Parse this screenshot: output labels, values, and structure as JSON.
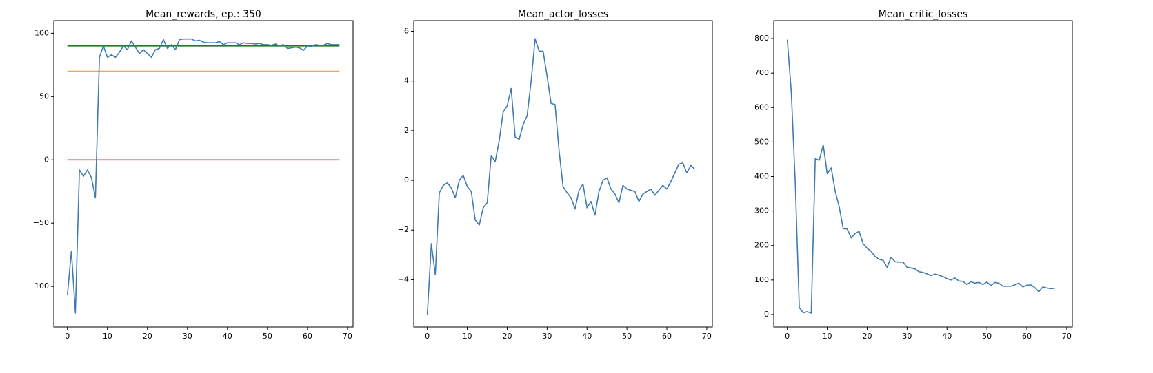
{
  "chart_data": [
    {
      "type": "line",
      "title": "Mean_rewards, ep.: 350",
      "color": "#3f7ab0",
      "x": [
        0,
        1,
        2,
        3,
        4,
        5,
        6,
        7,
        8,
        9,
        10,
        11,
        12,
        13,
        14,
        15,
        16,
        17,
        18,
        19,
        20,
        21,
        22,
        23,
        24,
        25,
        26,
        27,
        28,
        29,
        30,
        31,
        32,
        33,
        34,
        35,
        36,
        37,
        38,
        39,
        40,
        41,
        42,
        43,
        44,
        45,
        46,
        47,
        48,
        49,
        50,
        51,
        52,
        53,
        54,
        55,
        56,
        57,
        58,
        59,
        60,
        61,
        62,
        63,
        64,
        65,
        66,
        67,
        68
      ],
      "values": [
        -107,
        -72,
        -121,
        -8,
        -13,
        -8,
        -14,
        -30,
        81,
        90,
        81,
        83,
        81,
        85,
        90,
        87,
        94,
        89,
        84,
        87,
        84,
        81,
        87,
        88,
        95,
        88,
        91,
        87,
        95,
        95.5,
        95.5,
        95.5,
        94,
        94.5,
        93,
        92.5,
        92.5,
        92.5,
        93.5,
        91,
        92.5,
        92.5,
        92.5,
        91,
        92.5,
        92,
        92,
        91.5,
        92,
        91,
        91,
        90.5,
        91.5,
        90,
        91,
        88,
        88.5,
        89,
        88.5,
        86.5,
        90,
        89.5,
        91,
        90.5,
        90.5,
        92,
        91,
        91,
        91
      ],
      "hlines": [
        {
          "value": 90,
          "color": "#1e7b1e"
        },
        {
          "value": 70,
          "color": "#ffa726"
        },
        {
          "value": 0,
          "color": "#e53935"
        }
      ],
      "xlim": [
        -3.4,
        71.4
      ],
      "ylim": [
        -132,
        110
      ],
      "xticks": [
        0,
        10,
        20,
        30,
        40,
        50,
        60,
        70
      ],
      "yticks": [
        {
          "value": -100,
          "label": "−100"
        },
        {
          "value": -50,
          "label": "−50"
        },
        0,
        50,
        100
      ]
    },
    {
      "type": "line",
      "title": "Mean_actor_losses",
      "color": "#3f7ab0",
      "x": [
        0,
        1,
        2,
        3,
        4,
        5,
        6,
        7,
        8,
        9,
        10,
        11,
        12,
        13,
        14,
        15,
        16,
        17,
        18,
        19,
        20,
        21,
        22,
        23,
        24,
        25,
        26,
        27,
        28,
        29,
        30,
        31,
        32,
        33,
        34,
        35,
        36,
        37,
        38,
        39,
        40,
        41,
        42,
        43,
        44,
        45,
        46,
        47,
        48,
        49,
        50,
        51,
        52,
        53,
        54,
        55,
        56,
        57,
        58,
        59,
        60,
        61,
        62,
        63,
        64,
        65,
        66,
        67
      ],
      "values": [
        -5.4,
        -2.55,
        -3.8,
        -0.5,
        -0.2,
        -0.1,
        -0.3,
        -0.7,
        0,
        0.2,
        -0.25,
        -0.45,
        -1.6,
        -1.8,
        -1.1,
        -0.9,
        1.0,
        0.75,
        1.6,
        2.75,
        3.0,
        3.7,
        1.75,
        1.65,
        2.25,
        2.6,
        4.0,
        5.7,
        5.2,
        5.2,
        4.2,
        3.1,
        3.05,
        1.2,
        -0.25,
        -0.5,
        -0.7,
        -1.15,
        -0.4,
        -0.15,
        -1.1,
        -0.85,
        -1.4,
        -0.45,
        0,
        0.1,
        -0.35,
        -0.55,
        -0.9,
        -0.2,
        -0.35,
        -0.4,
        -0.45,
        -0.85,
        -0.55,
        -0.45,
        -0.35,
        -0.6,
        -0.4,
        -0.2,
        -0.35,
        -0.05,
        0.3,
        0.65,
        0.7,
        0.3,
        0.6,
        0.45
      ],
      "xlim": [
        -3.4,
        71.4
      ],
      "ylim": [
        -5.9,
        6.43
      ],
      "xticks": [
        0,
        10,
        20,
        30,
        40,
        50,
        60,
        70
      ],
      "yticks": [
        {
          "value": -4,
          "label": "−4"
        },
        {
          "value": -2,
          "label": "−2"
        },
        0,
        2,
        4,
        6
      ]
    },
    {
      "type": "line",
      "title": "Mean_critic_losses",
      "color": "#3f7ab0",
      "x": [
        0,
        1,
        2,
        3,
        4,
        5,
        6,
        7,
        8,
        9,
        10,
        11,
        12,
        13,
        14,
        15,
        16,
        17,
        18,
        19,
        20,
        21,
        22,
        23,
        24,
        25,
        26,
        27,
        28,
        29,
        30,
        31,
        32,
        33,
        34,
        35,
        36,
        37,
        38,
        39,
        40,
        41,
        42,
        43,
        44,
        45,
        46,
        47,
        48,
        49,
        50,
        51,
        52,
        53,
        54,
        55,
        56,
        57,
        58,
        59,
        60,
        61,
        62,
        63,
        64,
        65,
        66,
        67
      ],
      "values": [
        797,
        645,
        380,
        20,
        5,
        8,
        4,
        452,
        447,
        492,
        408,
        425,
        357,
        312,
        249,
        248,
        222,
        235,
        241,
        205,
        192,
        183,
        168,
        160,
        157,
        137,
        166,
        153,
        152,
        152,
        137,
        135,
        132,
        124,
        122,
        118,
        113,
        117,
        114,
        110,
        104,
        100,
        106,
        97,
        96,
        87,
        95,
        91,
        93,
        87,
        94,
        84,
        93,
        91,
        82,
        82,
        82,
        86,
        91,
        80,
        85,
        86,
        78,
        66,
        80,
        77,
        75,
        76
      ],
      "xlim": [
        -3.4,
        71.4
      ],
      "ylim": [
        -36,
        852
      ],
      "xticks": [
        0,
        10,
        20,
        30,
        40,
        50,
        60,
        70
      ],
      "yticks": [
        0,
        100,
        200,
        300,
        400,
        500,
        600,
        700,
        800
      ]
    }
  ]
}
